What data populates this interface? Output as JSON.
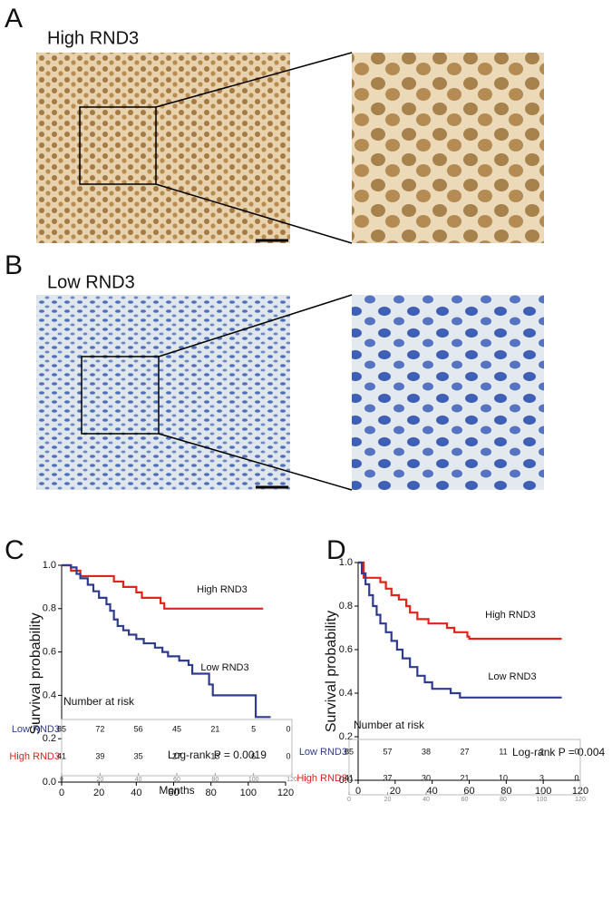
{
  "panel_labels": [
    "A",
    "B",
    "C",
    "D"
  ],
  "image_labels": [
    "High RND3",
    "Low RND3"
  ],
  "chart_data": [
    {
      "type": "line",
      "ylabel": "Survival probability",
      "annotation": "Log-rank P = 0.0019",
      "xlim": [
        0,
        120
      ],
      "ylim": [
        0,
        1
      ],
      "xticks": [
        0,
        20,
        40,
        60,
        80,
        100,
        120
      ],
      "yticks": [
        {
          "value": 0,
          "label": "0.0"
        },
        0.2,
        0.4,
        0.6,
        0.8,
        {
          "value": 1,
          "label": "1.0"
        }
      ],
      "series": [
        {
          "name": "High RND3",
          "color": "#e2231a",
          "x": [
            0,
            5,
            10,
            28,
            33,
            40,
            43,
            53,
            55,
            108
          ],
          "values": [
            1,
            0.975,
            0.95,
            0.925,
            0.9,
            0.875,
            0.85,
            0.825,
            0.8,
            0.8
          ]
        },
        {
          "name": "Low RND3",
          "color": "#2e3b8f",
          "x": [
            0,
            5,
            8,
            10,
            14,
            17,
            20,
            24,
            26,
            28,
            30,
            33,
            36,
            40,
            44,
            50,
            54,
            57,
            63,
            68,
            70,
            79,
            81,
            104,
            112
          ],
          "values": [
            1,
            0.99,
            0.96,
            0.94,
            0.91,
            0.88,
            0.85,
            0.82,
            0.79,
            0.75,
            0.72,
            0.7,
            0.68,
            0.66,
            0.64,
            0.62,
            0.6,
            0.58,
            0.56,
            0.54,
            0.5,
            0.45,
            0.4,
            0.3,
            0.3
          ]
        }
      ],
      "risk_table": {
        "title": "Number at risk",
        "xlabel": "Months",
        "xticks": [
          0,
          20,
          40,
          60,
          80,
          100,
          120
        ],
        "rows": [
          {
            "name": "Low RND3",
            "values": [
              85,
              72,
              56,
              45,
              21,
              5,
              0
            ]
          },
          {
            "name": "High RND3",
            "values": [
              41,
              39,
              35,
              27,
              13,
              6,
              0
            ]
          }
        ]
      }
    },
    {
      "type": "line",
      "ylabel": "Survival probability",
      "annotation": "Log-rank P = 0.004",
      "xlim": [
        0,
        120
      ],
      "ylim": [
        0,
        1
      ],
      "xticks": [
        0,
        20,
        40,
        60,
        80,
        100,
        120
      ],
      "yticks": [
        {
          "value": 0,
          "label": "0.0"
        },
        0.2,
        0.4,
        0.6,
        0.8,
        {
          "value": 1,
          "label": "1.0"
        }
      ],
      "series": [
        {
          "name": "High RND3",
          "color": "#e2231a",
          "x": [
            0,
            3,
            12,
            15,
            18,
            22,
            26,
            28,
            32,
            38,
            48,
            52,
            59,
            60,
            110
          ],
          "values": [
            1,
            0.93,
            0.91,
            0.88,
            0.85,
            0.83,
            0.8,
            0.77,
            0.74,
            0.72,
            0.7,
            0.68,
            0.66,
            0.65,
            0.65
          ]
        },
        {
          "name": "Low RND3",
          "color": "#2e3b8f",
          "x": [
            0,
            2,
            4,
            6,
            8,
            10,
            12,
            15,
            18,
            21,
            24,
            28,
            32,
            36,
            40,
            50,
            55,
            110
          ],
          "values": [
            1,
            0.95,
            0.9,
            0.85,
            0.8,
            0.76,
            0.72,
            0.68,
            0.64,
            0.6,
            0.56,
            0.52,
            0.48,
            0.45,
            0.42,
            0.4,
            0.38,
            0.38
          ]
        }
      ],
      "risk_table": {
        "title": "Number at risk",
        "xticks": [
          0,
          20,
          40,
          60,
          80,
          100,
          120
        ],
        "rows": [
          {
            "name": "Low RND3",
            "values": [
              85,
              57,
              38,
              27,
              11,
              2,
              0
            ]
          },
          {
            "name": "High RND3",
            "values": [
              41,
              37,
              30,
              21,
              10,
              3,
              0
            ]
          }
        ]
      }
    }
  ]
}
